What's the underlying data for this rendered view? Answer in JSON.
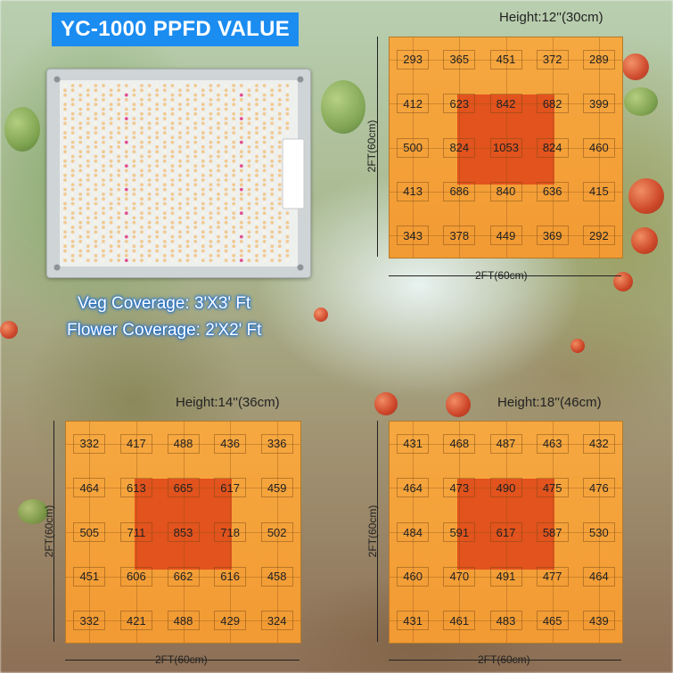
{
  "title": "YC-1000  PPFD VALUE",
  "coverage": {
    "veg": "Veg Coverage:  3'X3' Ft",
    "flower": "Flower Coverage:  2'X2' Ft"
  },
  "colors": {
    "title_bg": "#1b8cf0",
    "grid_bg": "#f4a33c",
    "center_block": "#e2531d",
    "coverage_glow": "#1b6fd6"
  },
  "charts": [
    {
      "id": "h12",
      "height_label": "Height:12''(30cm)",
      "width_label": "2FT(60cm)",
      "depth_label": "2FT(60cm)",
      "rows": [
        [
          "293",
          "365",
          "451",
          "372",
          "289"
        ],
        [
          "412",
          "623",
          "842",
          "682",
          "399"
        ],
        [
          "500",
          "824",
          "1053",
          "824",
          "460"
        ],
        [
          "413",
          "686",
          "840",
          "636",
          "415"
        ],
        [
          "343",
          "378",
          "449",
          "369",
          "292"
        ]
      ]
    },
    {
      "id": "h14",
      "height_label": "Height:14''(36cm)",
      "width_label": "2FT(60cm)",
      "depth_label": "2FT(60cm)",
      "rows": [
        [
          "332",
          "417",
          "488",
          "436",
          "336"
        ],
        [
          "464",
          "613",
          "665",
          "617",
          "459"
        ],
        [
          "505",
          "711",
          "853",
          "718",
          "502"
        ],
        [
          "451",
          "606",
          "662",
          "616",
          "458"
        ],
        [
          "332",
          "421",
          "488",
          "429",
          "324"
        ]
      ]
    },
    {
      "id": "h18",
      "height_label": "Height:18''(46cm)",
      "width_label": "2FT(60cm)",
      "depth_label": "2FT(60cm)",
      "rows": [
        [
          "431",
          "468",
          "487",
          "463",
          "432"
        ],
        [
          "464",
          "473",
          "490",
          "475",
          "476"
        ],
        [
          "484",
          "591",
          "617",
          "587",
          "530"
        ],
        [
          "460",
          "470",
          "491",
          "477",
          "464"
        ],
        [
          "431",
          "461",
          "483",
          "465",
          "439"
        ]
      ]
    }
  ]
}
